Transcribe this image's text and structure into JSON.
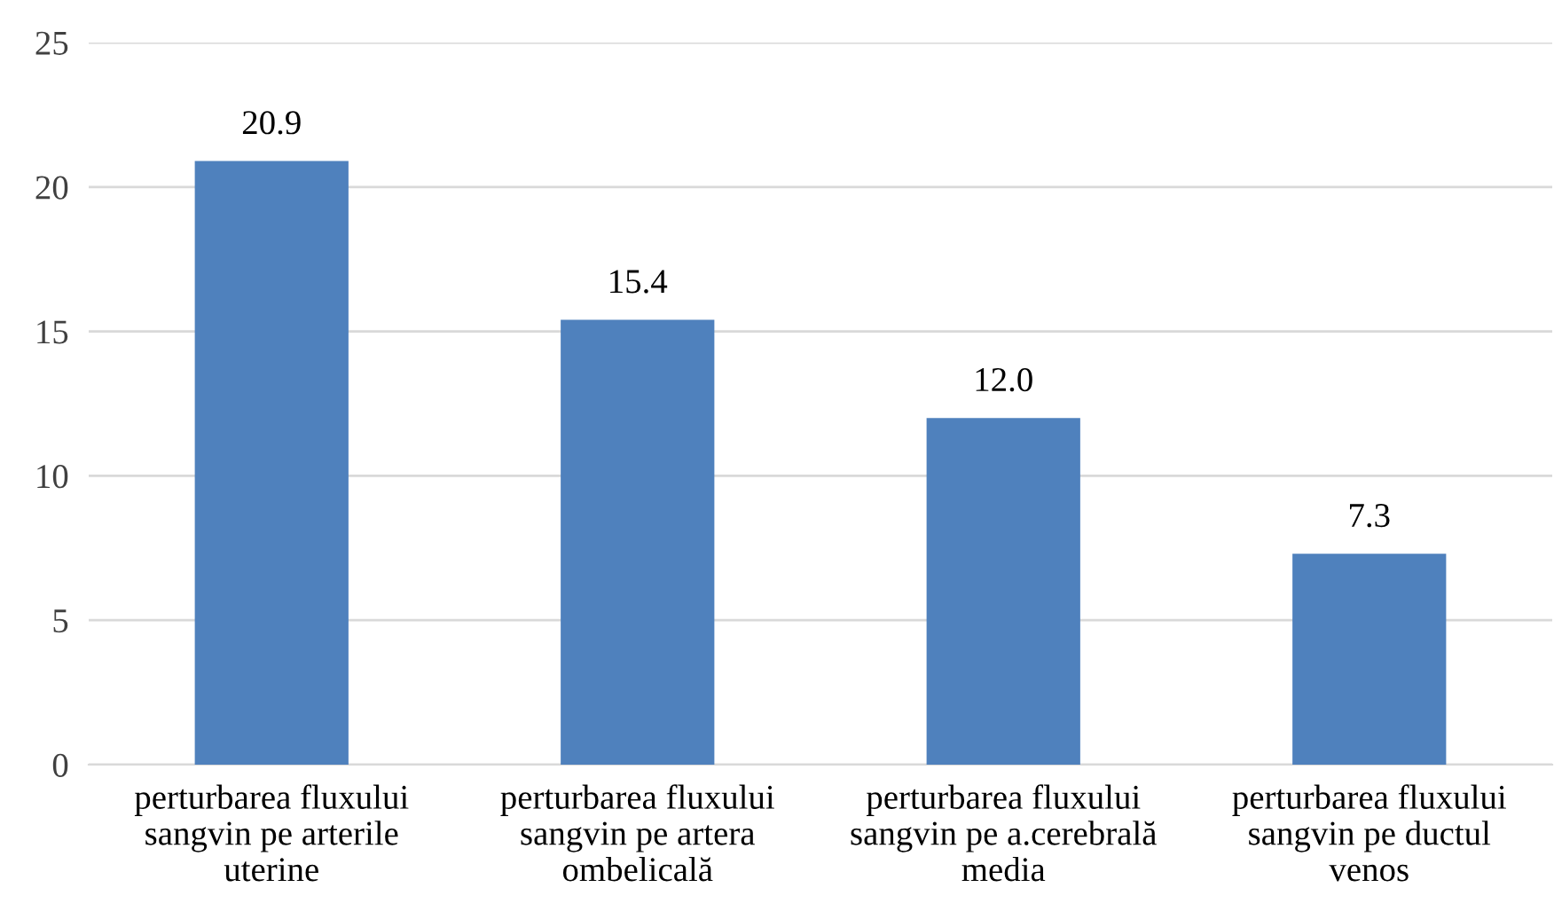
{
  "chart_data": {
    "type": "bar",
    "categories": [
      "perturbarea fluxului\nsangvin pe arterile\nuterine",
      "perturbarea fluxului\nsangvin pe artera\nombelicală",
      "perturbarea fluxului\nsangvin pe a.cerebrală\nmedia",
      "perturbarea fluxului\nsangvin pe ductul\nvenos"
    ],
    "values": [
      20.9,
      15.4,
      12.0,
      7.3
    ],
    "value_labels": [
      "20.9",
      "15.4",
      "12.0",
      "7.3"
    ],
    "color": "#4f81bd",
    "ylim": [
      0,
      25
    ],
    "yticks": [
      0,
      5,
      10,
      15,
      20,
      25
    ],
    "grid": "y",
    "legend": false
  }
}
